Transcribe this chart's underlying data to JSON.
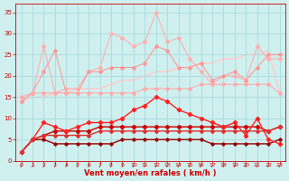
{
  "xlabel": "Vent moyen/en rafales ( km/h )",
  "xlim": [
    -0.5,
    23.5
  ],
  "ylim": [
    0,
    37
  ],
  "yticks": [
    0,
    5,
    10,
    15,
    20,
    25,
    30,
    35
  ],
  "xticks": [
    0,
    1,
    2,
    3,
    4,
    5,
    6,
    7,
    8,
    9,
    10,
    11,
    12,
    13,
    14,
    15,
    16,
    17,
    18,
    19,
    20,
    21,
    22,
    23
  ],
  "bg_color": "#d0f0f0",
  "grid_color": "#b0dede",
  "lines": [
    {
      "y": [
        14,
        16,
        27,
        16,
        17,
        17,
        21,
        22,
        30,
        29,
        27,
        28,
        35,
        28,
        29,
        24,
        21,
        18,
        20,
        20,
        19,
        27,
        24,
        24
      ],
      "color": "#ffb0b0",
      "lw": 0.8,
      "marker": "D",
      "ms": 2.0,
      "zorder": 2
    },
    {
      "y": [
        14,
        16,
        21,
        26,
        16,
        16,
        21,
        21,
        22,
        22,
        22,
        23,
        27,
        26,
        22,
        22,
        23,
        19,
        20,
        21,
        19,
        22,
        25,
        25
      ],
      "color": "#ff9999",
      "lw": 0.8,
      "marker": "D",
      "ms": 2.0,
      "zorder": 3
    },
    {
      "y": [
        14,
        15,
        15,
        16,
        16,
        17,
        17,
        17,
        18,
        19,
        19,
        20,
        21,
        21,
        22,
        22,
        23,
        23,
        24,
        24,
        25,
        25,
        26,
        16
      ],
      "color": "#ffcccc",
      "lw": 1.2,
      "marker": null,
      "ms": 0,
      "zorder": 1
    },
    {
      "y": [
        15,
        16,
        16,
        16,
        16,
        16,
        16,
        16,
        16,
        16,
        16,
        17,
        17,
        17,
        17,
        17,
        18,
        18,
        18,
        18,
        18,
        18,
        18,
        16
      ],
      "color": "#ffaaaa",
      "lw": 0.8,
      "marker": "D",
      "ms": 2.0,
      "zorder": 4
    },
    {
      "y": [
        2,
        5,
        9,
        8,
        7,
        8,
        9,
        9,
        9,
        10,
        12,
        13,
        15,
        14,
        12,
        11,
        10,
        9,
        8,
        9,
        6,
        10,
        5,
        4
      ],
      "color": "#ff2222",
      "lw": 1.0,
      "marker": "D",
      "ms": 2.2,
      "zorder": 7
    },
    {
      "y": [
        2,
        5,
        6,
        7,
        7,
        7,
        7,
        8,
        8,
        8,
        8,
        8,
        8,
        8,
        8,
        8,
        8,
        8,
        8,
        8,
        8,
        8,
        7,
        8
      ],
      "color": "#cc0000",
      "lw": 1.0,
      "marker": "D",
      "ms": 2.2,
      "zorder": 6
    },
    {
      "y": [
        2,
        5,
        5,
        4,
        4,
        4,
        4,
        4,
        4,
        5,
        5,
        5,
        5,
        5,
        5,
        5,
        5,
        4,
        4,
        4,
        4,
        4,
        4,
        5
      ],
      "color": "#990000",
      "lw": 1.0,
      "marker": "D",
      "ms": 1.8,
      "zorder": 5
    },
    {
      "y": [
        2,
        5,
        6,
        6,
        6,
        6,
        6,
        7,
        7,
        7,
        7,
        7,
        7,
        7,
        7,
        7,
        7,
        7,
        7,
        7,
        7,
        7,
        7,
        8
      ],
      "color": "#dd3333",
      "lw": 1.0,
      "marker": "D",
      "ms": 2.0,
      "zorder": 8
    }
  ]
}
